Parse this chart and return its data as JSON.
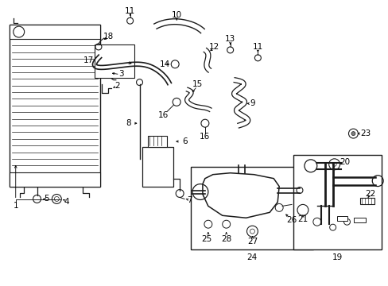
{
  "bg_color": "#ffffff",
  "line_color": "#1a1a1a",
  "fig_width": 4.89,
  "fig_height": 3.6,
  "dpi": 100,
  "fs": 7.5
}
